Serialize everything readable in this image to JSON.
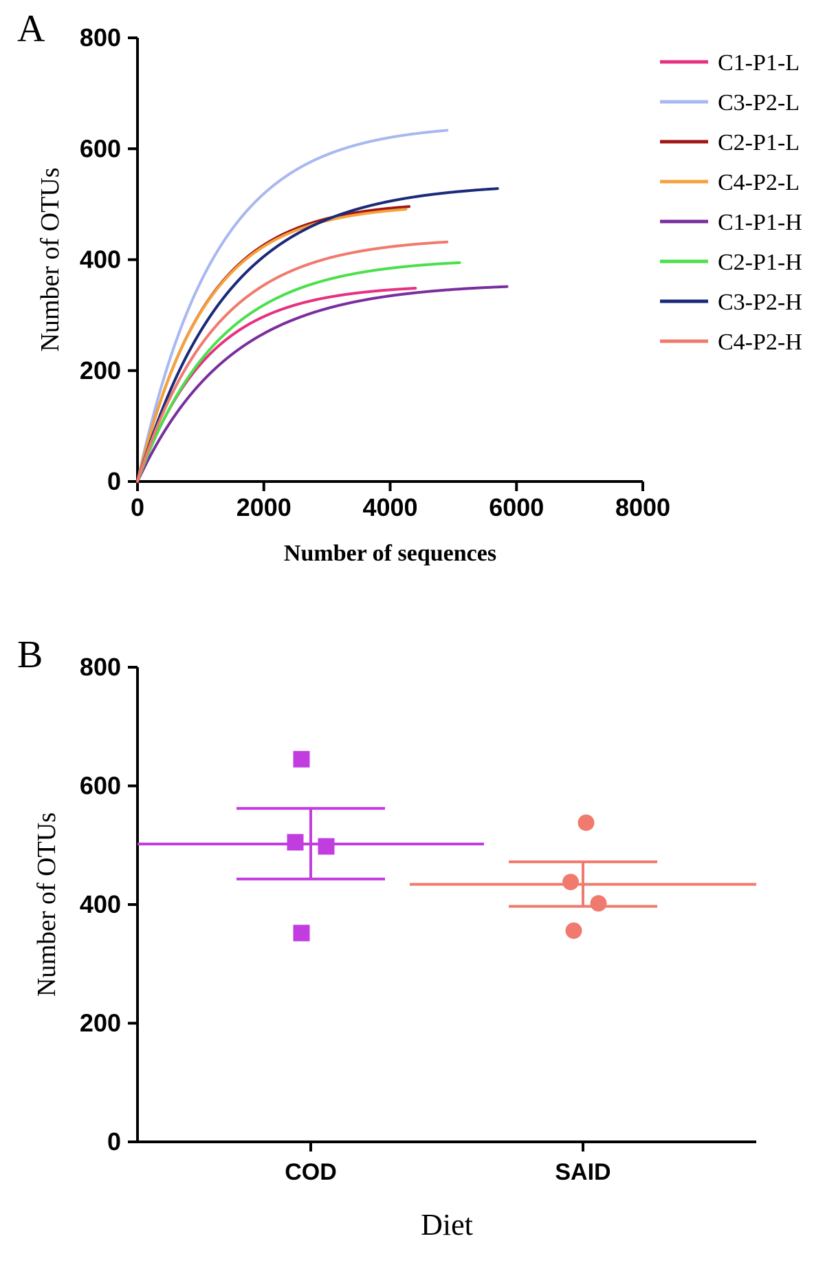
{
  "panelA": {
    "label": "A",
    "label_fontsize": 56,
    "type": "line",
    "xlabel": "Number of sequences",
    "ylabel": "Number of OTUs",
    "xlabel_fontsize": 34,
    "ylabel_fontsize": 38,
    "tick_fontsize": 36,
    "xlim": [
      0,
      8000
    ],
    "ylim": [
      0,
      800
    ],
    "xtick_step": 2000,
    "ytick_step": 200,
    "axis_color": "#000000",
    "line_width": 4,
    "legend_fontsize": 34,
    "legend_line_length": 70,
    "background_color": "#ffffff",
    "series": [
      {
        "name": "C1-P1-L",
        "color": "#e6317f",
        "xmax": 4400,
        "ymax": 355
      },
      {
        "name": "C3-P2-L",
        "color": "#a8b8f0",
        "xmax": 4900,
        "ymax": 645
      },
      {
        "name": "C2-P1-L",
        "color": "#a01515",
        "xmax": 4300,
        "ymax": 505
      },
      {
        "name": "C4-P2-L",
        "color": "#f5a23d",
        "xmax": 4250,
        "ymax": 500
      },
      {
        "name": "C1-P1-H",
        "color": "#7a2e9e",
        "xmax": 5850,
        "ymax": 358
      },
      {
        "name": "C2-P1-H",
        "color": "#4be04b",
        "xmax": 5100,
        "ymax": 402
      },
      {
        "name": "C3-P2-H",
        "color": "#1a2a7a",
        "xmax": 5700,
        "ymax": 538
      },
      {
        "name": "C4-P2-H",
        "color": "#f07a6e",
        "xmax": 4900,
        "ymax": 440
      }
    ]
  },
  "panelB": {
    "label": "B",
    "label_fontsize": 56,
    "type": "scatter-errorbar",
    "xlabel": "Diet",
    "ylabel": "Number of OTUs",
    "xlabel_fontsize": 44,
    "ylabel_fontsize": 38,
    "tick_fontsize": 36,
    "category_fontsize": 34,
    "ylim": [
      0,
      800
    ],
    "ytick_step": 200,
    "axis_color": "#000000",
    "marker_size": 24,
    "errorbar_width": 3,
    "cap_halfwidth": 0.12,
    "mean_line_halfwidth": 0.28,
    "background_color": "#ffffff",
    "groups": [
      {
        "name": "COD",
        "color": "#c23de0",
        "marker": "square",
        "x": 0.28,
        "mean": 502,
        "sem_low": 443,
        "sem_high": 562,
        "points": [
          {
            "dx": -0.015,
            "y": 645
          },
          {
            "dx": -0.025,
            "y": 505
          },
          {
            "dx": 0.025,
            "y": 498
          },
          {
            "dx": -0.015,
            "y": 352
          }
        ]
      },
      {
        "name": "SAID",
        "color": "#f07a6e",
        "marker": "circle",
        "x": 0.72,
        "mean": 434,
        "sem_low": 397,
        "sem_high": 472,
        "points": [
          {
            "dx": 0.005,
            "y": 538
          },
          {
            "dx": -0.02,
            "y": 438
          },
          {
            "dx": 0.025,
            "y": 402
          },
          {
            "dx": -0.015,
            "y": 356
          }
        ]
      }
    ]
  }
}
